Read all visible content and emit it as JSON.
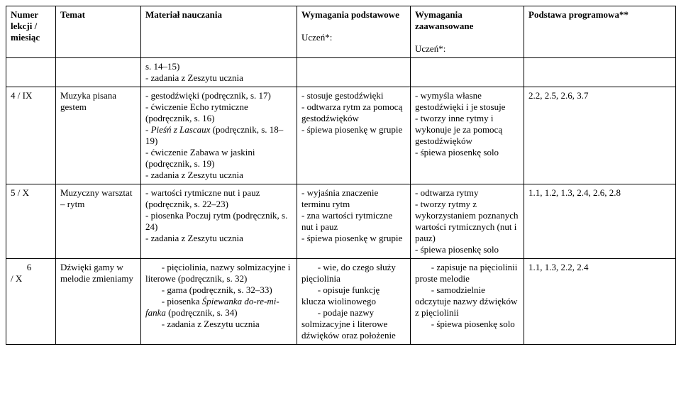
{
  "headers": {
    "col_num": "Numer lekcji / miesiąc",
    "col_topic": "Temat",
    "col_material": "Materiał nauczania",
    "col_basic": "Wymagania podstawowe",
    "col_basic_sub": "Uczeń*:",
    "col_adv": "Wymagania zaawansowane",
    "col_adv_sub": "Uczeń*:",
    "col_curr": "Podstawa programowa**"
  },
  "rows": [
    {
      "num": "",
      "topic": "",
      "material": "s. 14–15)\n- zadania z Zeszytu ucznia",
      "basic": "",
      "adv": "",
      "curr": ""
    },
    {
      "num": "4 / IX",
      "topic": "Muzyka pisana gestem",
      "material_parts": [
        {
          "t": "- gestodźwięki (podręcznik, s. 17)\n- ćwiczenie Echo rytmiczne (podręcznik, s. 16)\n- "
        },
        {
          "t": "Pieśń z Lascaux",
          "italic": true
        },
        {
          "t": " (podręcznik, s. 18–19)\n- ćwiczenie Zabawa w jaskini (podręcznik, s. 19)\n- zadania z Zeszytu ucznia"
        }
      ],
      "basic": "- stosuje gestodźwięki\n- odtwarza rytm za pomocą gestodźwięków\n- śpiewa piosenkę w grupie",
      "adv": "- wymyśla własne gestodźwięki i je stosuje\n- tworzy inne rytmy i wykonuje je za pomocą gestodźwięków\n- śpiewa piosenkę solo",
      "curr": "2.2, 2.5, 2.6, 3.7"
    },
    {
      "num": "5 / X",
      "topic": "Muzyczny warsztat – rytm",
      "material": "- wartości rytmiczne nut i pauz (podręcznik, s. 22–23)\n- piosenka Poczuj rytm (podręcznik, s. 24)\n- zadania z Zeszytu ucznia",
      "basic": "- wyjaśnia znaczenie terminu rytm\n- zna wartości rytmiczne nut i pauz\n- śpiewa piosenkę w grupie",
      "adv": "- odtwarza rytmy\n- tworzy rytmy z wykorzystaniem poznanych wartości rytmicznych (nut i pauz)\n- śpiewa piosenkę solo",
      "curr": "1.1, 1.2, 1.3, 2.4, 2.6, 2.8"
    },
    {
      "num": "       6\n/ X",
      "topic": "Dźwięki gamy w melodie zmieniamy",
      "material_parts": [
        {
          "t": "       - pięciolinia, nazwy solmizacyjne i literowe (podręcznik, s. 32)\n       - gama (podręcznik, s. 32–33)\n       - piosenka "
        },
        {
          "t": "Śpiewanka do-re-mi-fanka",
          "italic": true
        },
        {
          "t": " (podręcznik, s. 34)\n       - zadania z Zeszytu ucznia"
        }
      ],
      "basic": "       - wie, do czego służy pięciolinia\n       - opisuje funkcję klucza wiolinowego\n       - podaje nazwy solmizacyjne i literowe dźwięków oraz położenie",
      "adv": "       - zapisuje na pięciolinii proste melodie\n       - samodzielnie odczytuje nazwy dźwięków z pięciolinii\n       - śpiewa piosenkę solo",
      "curr": "1.1, 1.3, 2.2, 2.4"
    }
  ]
}
